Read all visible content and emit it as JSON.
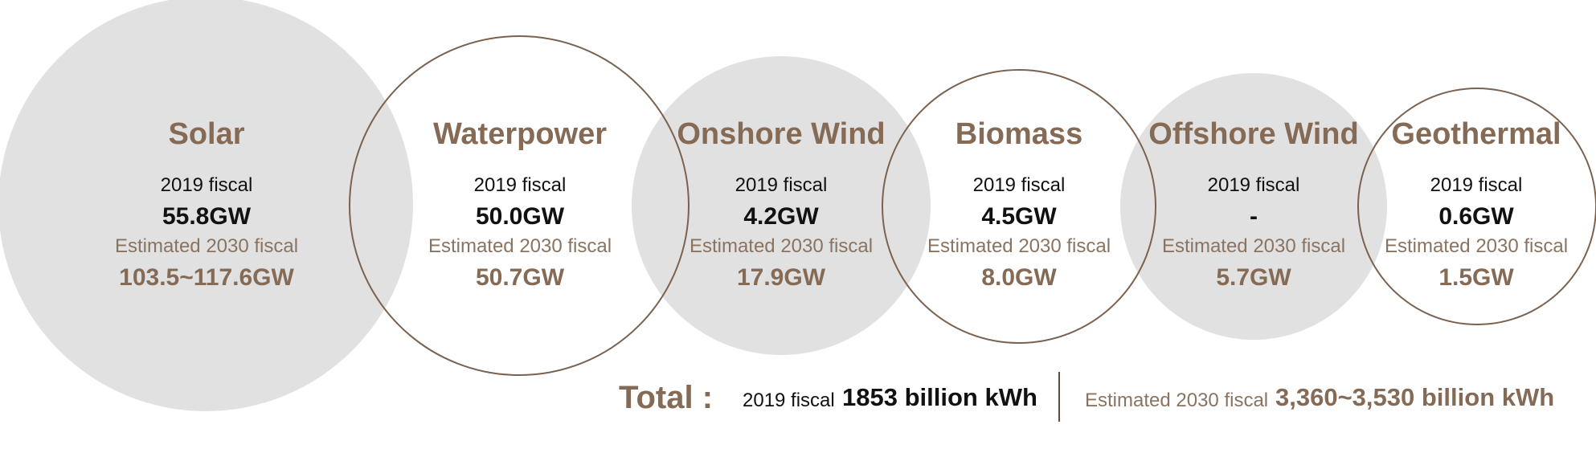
{
  "colors": {
    "accent_brown": "#856a55",
    "circle_fill": "#e1e1e1",
    "circle_outline": "#7b6250",
    "text_dark": "#111111"
  },
  "sources": [
    {
      "name": "Solar",
      "style": "filled",
      "fiscal_2019_label": "2019 fiscal",
      "fiscal_2019_value": "55.8GW",
      "estimated_2030_label": "Estimated 2030 fiscal",
      "estimated_2030_value": "103.5~117.6GW"
    },
    {
      "name": "Waterpower",
      "style": "outline",
      "fiscal_2019_label": "2019 fiscal",
      "fiscal_2019_value": "50.0GW",
      "estimated_2030_label": "Estimated 2030 fiscal",
      "estimated_2030_value": "50.7GW"
    },
    {
      "name": "Onshore Wind",
      "style": "filled",
      "fiscal_2019_label": "2019 fiscal",
      "fiscal_2019_value": "4.2GW",
      "estimated_2030_label": "Estimated 2030 fiscal",
      "estimated_2030_value": "17.9GW"
    },
    {
      "name": "Biomass",
      "style": "outline",
      "fiscal_2019_label": "2019 fiscal",
      "fiscal_2019_value": "4.5GW",
      "estimated_2030_label": "Estimated 2030 fiscal",
      "estimated_2030_value": "8.0GW"
    },
    {
      "name": "Offshore Wind",
      "style": "filled",
      "fiscal_2019_label": "2019 fiscal",
      "fiscal_2019_value": "-",
      "estimated_2030_label": "Estimated 2030 fiscal",
      "estimated_2030_value": "5.7GW"
    },
    {
      "name": "Geothermal",
      "style": "outline",
      "fiscal_2019_label": "2019 fiscal",
      "fiscal_2019_value": "0.6GW",
      "estimated_2030_label": "Estimated 2030 fiscal",
      "estimated_2030_value": "1.5GW"
    }
  ],
  "total": {
    "title": "Total :",
    "fiscal_2019_label": "2019 fiscal",
    "fiscal_2019_value": "1853 billion kWh",
    "estimated_2030_label": "Estimated 2030 fiscal",
    "estimated_2030_value": "3,360~3,530 billion kWh"
  }
}
